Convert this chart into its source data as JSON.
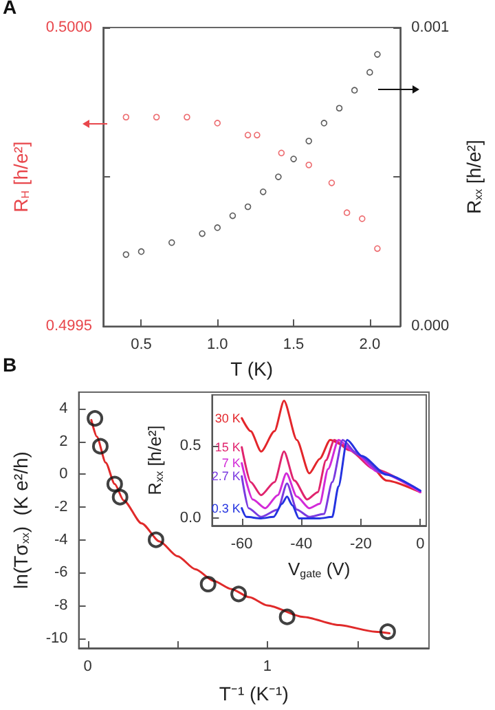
{
  "chart_data": [
    {
      "type": "scatter",
      "title": "A",
      "xlabel": "T (K)",
      "ylabel": "R$_{H}$ [h/e²]",
      "y2label": "R$_{xx}$ [h/e²]",
      "marker": "circle",
      "grid": false,
      "legend": false,
      "xlim": [
        0.25,
        2.2
      ],
      "xticks": [
        0.5,
        {
          "value": 1,
          "label": "1.0"
        },
        1.5,
        {
          "value": 2,
          "label": "2.0"
        }
      ],
      "ylim": [
        0.4995,
        0.5
      ],
      "yticks": [
        {
          "value": 0.4995,
          "label": "0.4995"
        },
        {
          "value": 0.49975,
          "label": null
        },
        {
          "value": 0.5,
          "label": "0.5000"
        }
      ],
      "y2lim": [
        0,
        0.001
      ],
      "y2ticks": [
        {
          "value": 0,
          "label": "0.000"
        },
        {
          "value": 0.0005,
          "label": null
        },
        0.001
      ],
      "series": [
        {
          "color": "#e8474c",
          "x": [
            0.4,
            0.6,
            0.8,
            1.0,
            1.2,
            1.26,
            1.42,
            1.6,
            1.75,
            1.85,
            1.95,
            2.05
          ],
          "values": [
            0.49985,
            0.49985,
            0.49985,
            0.49984,
            0.49982,
            0.49982,
            0.49979,
            0.49977,
            0.49974,
            0.49969,
            0.49968,
            0.49963
          ]
        },
        {
          "color": "#333333",
          "axis": "y2",
          "x": [
            0.4,
            0.5,
            0.7,
            0.9,
            1.0,
            1.1,
            1.2,
            1.3,
            1.4,
            1.5,
            1.6,
            1.7,
            1.8,
            1.9,
            2.0,
            2.05
          ],
          "values": [
            0.00024,
            0.00025,
            0.00028,
            0.00031,
            0.00033,
            0.00037,
            0.0004,
            0.00045,
            0.0005,
            0.00056,
            0.00062,
            0.00068,
            0.00073,
            0.00079,
            0.00085,
            0.00091
          ]
        }
      ]
    },
    {
      "type": "scatter",
      "title": "B",
      "xlabel": "T⁻¹ (K⁻¹)",
      "ylabel": "ln(Tσ$_{xx}$)  (K e²/h)",
      "marker": "circle",
      "grid": false,
      "legend": false,
      "xlim": [
        -0.05,
        1.9
      ],
      "xticks": [
        0,
        {
          "value": 0.5,
          "label": null
        },
        1,
        {
          "value": 1.5,
          "label": null
        }
      ],
      "ylim": [
        -10.6,
        5
      ],
      "yticks": [
        -10,
        -8,
        -6,
        -4,
        -2,
        0,
        2,
        4
      ],
      "series": [
        {
          "color": "#111111",
          "x": [
            0.04,
            0.07,
            0.15,
            0.18,
            0.38,
            0.67,
            0.84,
            1.11,
            1.67
          ],
          "values": [
            3.4,
            1.7,
            -0.6,
            -1.4,
            -4.0,
            -6.7,
            -7.3,
            -8.7,
            -9.6
          ]
        },
        {
          "type": "line",
          "color": "#e02a2a",
          "marker": "none",
          "line_style": "solid",
          "x": [
            0.02,
            0.05,
            0.1,
            0.15,
            0.2,
            0.3,
            0.4,
            0.5,
            0.6,
            0.7,
            0.8,
            0.9,
            1.0,
            1.2,
            1.4,
            1.6,
            1.68
          ],
          "values": [
            3.3,
            2.3,
            0.7,
            -0.6,
            -1.6,
            -3.0,
            -4.1,
            -5.0,
            -5.8,
            -6.5,
            -7.0,
            -7.5,
            -8.0,
            -8.7,
            -9.2,
            -9.6,
            -9.7
          ]
        }
      ]
    },
    {
      "type": "line",
      "xlabel": "V$_{gate}$ (V)",
      "ylabel": "R$_{xx}$ [h/e²]",
      "marker": "none",
      "line_style": "solid",
      "grid": false,
      "legend": false,
      "xlim": [
        -70,
        2
      ],
      "xticks": [
        -60,
        -40,
        -20,
        0
      ],
      "ylim": [
        -0.05,
        0.85
      ],
      "yticks": [
        {
          "value": 0,
          "label": "0.0"
        },
        0.5
      ],
      "series": [
        {
          "name": "30 K",
          "color": "#e3262b",
          "x": [
            -60,
            -57,
            -53.5,
            -49,
            -45.8,
            -41.5,
            -37.3,
            -33.8,
            -30.3,
            -25.4,
            -18.3,
            -11.3,
            0
          ],
          "values": [
            0.69,
            0.6,
            0.46,
            0.6,
            0.81,
            0.54,
            0.31,
            0.41,
            0.54,
            0.5,
            0.4,
            0.26,
            0.18
          ]
        },
        {
          "name": "15 K",
          "color": "#e0246e",
          "x": [
            -60,
            -57,
            -53.5,
            -49,
            -45.8,
            -42.3,
            -38,
            -34.5,
            -31.7,
            -28.9,
            -24,
            -15.5,
            0
          ],
          "values": [
            0.49,
            0.25,
            0.16,
            0.25,
            0.46,
            0.26,
            0.13,
            0.18,
            0.4,
            0.54,
            0.47,
            0.34,
            0.18
          ]
        },
        {
          "name": "7 K",
          "color": "#d22ad8",
          "x": [
            -60,
            -56.3,
            -52.1,
            -47.9,
            -45,
            -41.5,
            -37.3,
            -33.8,
            -31,
            -27.5,
            -22.5,
            -14.1,
            0
          ],
          "values": [
            0.38,
            0.13,
            0.07,
            0.16,
            0.31,
            0.15,
            0.07,
            0.1,
            0.34,
            0.54,
            0.46,
            0.32,
            0.18
          ]
        },
        {
          "name": "2.7 K",
          "color": "#7a3ae0",
          "x": [
            -60,
            -57.7,
            -53.5,
            -47.9,
            -44.8,
            -41.5,
            -37.3,
            -32.4,
            -29.6,
            -26.1,
            -21.1,
            -12.7,
            0
          ],
          "values": [
            0.29,
            0.07,
            0.01,
            0.06,
            0.24,
            0.06,
            0.01,
            0.03,
            0.25,
            0.54,
            0.44,
            0.31,
            0.19
          ]
        },
        {
          "name": "0.3 K",
          "color": "#2433e0",
          "x": [
            -60,
            -58.5,
            -53.5,
            -49.3,
            -46.5,
            -44.8,
            -43,
            -40.8,
            -33.8,
            -29.6,
            -27.5,
            -24.6,
            -19.7,
            -11.3,
            0
          ],
          "values": [
            0.07,
            0.01,
            0,
            0.01,
            0.1,
            0.15,
            0.09,
            0,
            0,
            0.01,
            0.22,
            0.54,
            0.43,
            0.3,
            0.19
          ]
        }
      ]
    }
  ]
}
